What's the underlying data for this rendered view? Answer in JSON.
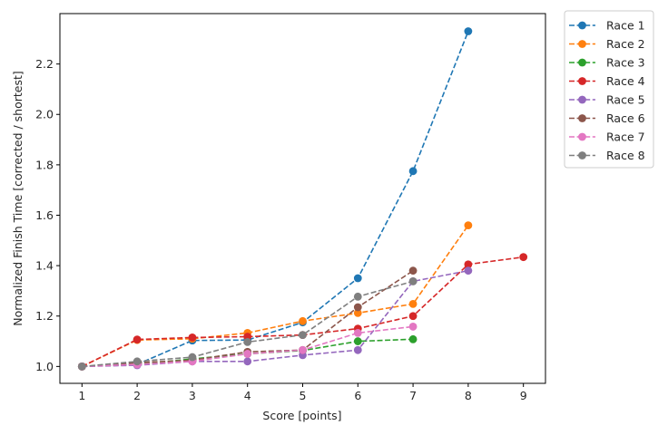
{
  "chart_data": {
    "type": "line",
    "title": "",
    "xlabel": "Score [points]",
    "ylabel": "Normalized Finish Time [corrected / shortest]",
    "xlim": [
      0.6,
      9.4
    ],
    "ylim": [
      0.933,
      2.4
    ],
    "x_ticks": [
      1,
      2,
      3,
      4,
      5,
      6,
      7,
      8,
      9
    ],
    "y_ticks": [
      1.0,
      1.2,
      1.4,
      1.6,
      1.8,
      2.0,
      2.2
    ],
    "y_tick_labels": [
      "1.0",
      "1.2",
      "1.4",
      "1.6",
      "1.8",
      "2.0",
      "2.2"
    ],
    "grid": false,
    "legend_position": "outside upper right",
    "line_style": "dashed",
    "marker": "circle",
    "series": [
      {
        "name": "Race 1",
        "color": "#1f77b4",
        "x": [
          1,
          2,
          3,
          4,
          5,
          6,
          7,
          8
        ],
        "values": [
          1.0,
          1.008,
          1.103,
          1.105,
          1.175,
          1.35,
          1.775,
          2.33
        ]
      },
      {
        "name": "Race 2",
        "color": "#ff7f0e",
        "x": [
          1,
          2,
          3,
          4,
          5,
          6,
          7,
          8
        ],
        "values": [
          1.0,
          1.105,
          1.11,
          1.133,
          1.18,
          1.212,
          1.248,
          1.56
        ]
      },
      {
        "name": "Race 3",
        "color": "#2ca02c",
        "x": [
          1,
          2,
          3,
          4,
          5,
          6,
          7
        ],
        "values": [
          1.0,
          1.008,
          1.03,
          1.05,
          1.063,
          1.1,
          1.108
        ]
      },
      {
        "name": "Race 4",
        "color": "#d62728",
        "x": [
          1,
          2,
          3,
          4,
          5,
          6,
          7,
          8,
          9
        ],
        "values": [
          1.0,
          1.107,
          1.115,
          1.118,
          1.125,
          1.15,
          1.2,
          1.405,
          1.434
        ]
      },
      {
        "name": "Race 5",
        "color": "#9467bd",
        "x": [
          1,
          2,
          3,
          4,
          5,
          6,
          7,
          8
        ],
        "values": [
          1.0,
          1.005,
          1.02,
          1.02,
          1.045,
          1.065,
          1.338,
          1.38
        ]
      },
      {
        "name": "Race 6",
        "color": "#8c564b",
        "x": [
          1,
          2,
          3,
          4,
          5,
          6,
          7
        ],
        "values": [
          1.0,
          1.015,
          1.025,
          1.058,
          1.065,
          1.235,
          1.38
        ]
      },
      {
        "name": "Race 7",
        "color": "#e377c2",
        "x": [
          1,
          2,
          3,
          4,
          5,
          6,
          7
        ],
        "values": [
          1.0,
          1.008,
          1.02,
          1.05,
          1.065,
          1.133,
          1.158
        ]
      },
      {
        "name": "Race 8",
        "color": "#7f7f7f",
        "x": [
          1,
          2,
          3,
          4,
          5,
          6,
          7
        ],
        "values": [
          1.0,
          1.02,
          1.037,
          1.097,
          1.125,
          1.277,
          1.338
        ]
      }
    ]
  }
}
